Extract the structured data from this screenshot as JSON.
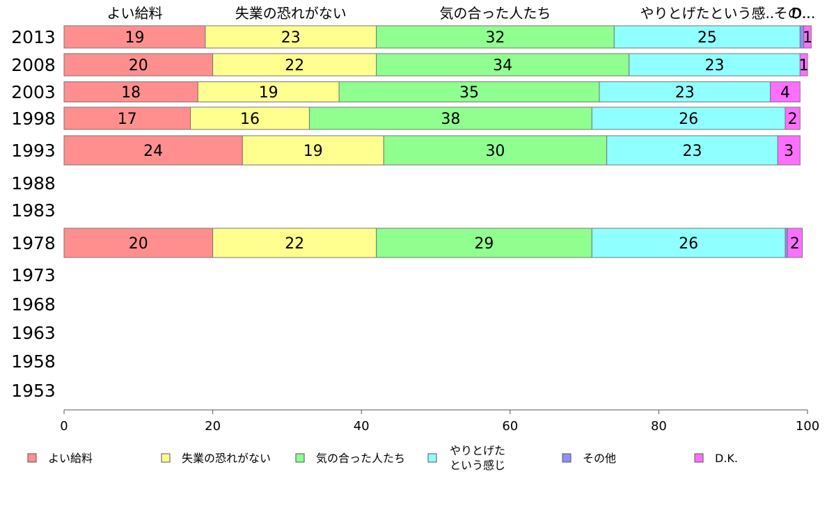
{
  "chart_data": {
    "type": "bar",
    "orientation": "horizontal",
    "stacked": true,
    "categories": [
      "2013",
      "2008",
      "2003",
      "1998",
      "1993",
      "1988",
      "1983",
      "1978",
      "1973",
      "1968",
      "1963",
      "1958",
      "1953"
    ],
    "series": [
      {
        "name": "よい給料",
        "color": "#ff8f8f",
        "values": [
          19,
          20,
          18,
          17,
          24,
          null,
          null,
          20,
          null,
          null,
          null,
          null,
          null
        ]
      },
      {
        "name": "失業の恐れがない",
        "color": "#ffff8f",
        "values": [
          23,
          22,
          19,
          16,
          19,
          null,
          null,
          22,
          null,
          null,
          null,
          null,
          null
        ]
      },
      {
        "name": "気の合った人たち",
        "color": "#8fff8f",
        "values": [
          32,
          34,
          35,
          38,
          30,
          null,
          null,
          29,
          null,
          null,
          null,
          null,
          null
        ]
      },
      {
        "name": "やりとげたという感じ",
        "legend_lines": [
          "やりとげた",
          "という感じ"
        ],
        "color": "#8fffff",
        "values": [
          25,
          23,
          23,
          26,
          23,
          null,
          null,
          26,
          null,
          null,
          null,
          null,
          null
        ]
      },
      {
        "name": "その他",
        "color": "#8f8fff",
        "values": [
          0.5,
          0,
          0,
          0,
          0,
          null,
          null,
          0.3,
          null,
          null,
          null,
          null,
          null
        ]
      },
      {
        "name": "D.K.",
        "color": "#ff6fff",
        "values": [
          1,
          1,
          4,
          2,
          3,
          null,
          null,
          2,
          null,
          null,
          null,
          null,
          null
        ]
      }
    ],
    "top_labels": [
      "よい給料",
      "失業の恐れがない",
      "気の合った人たち",
      "やりとげたという感..",
      "その..",
      "D..."
    ],
    "xlim": [
      0,
      100
    ],
    "xticks": [
      0,
      20,
      40,
      60,
      80,
      100
    ],
    "grid": false,
    "legend_position": "bottom"
  }
}
